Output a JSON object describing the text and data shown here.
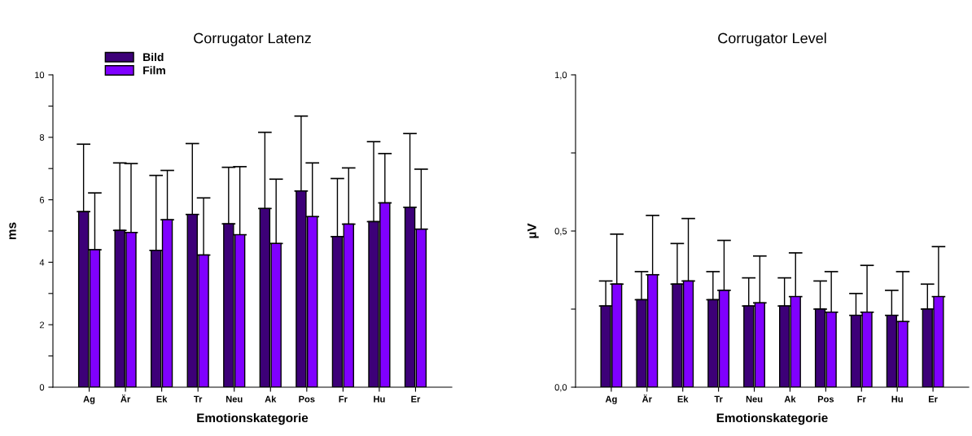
{
  "chart_data": [
    {
      "type": "bar",
      "title": "Corrugator Latenz",
      "xlabel": "Emotionskategorie",
      "ylabel": "ms",
      "categories": [
        "Ag",
        "Är",
        "Ek",
        "Tr",
        "Neu",
        "Ak",
        "Pos",
        "Fr",
        "Hu",
        "Er"
      ],
      "series": [
        {
          "name": "Bild",
          "color": "#3d0078",
          "values": [
            5.62,
            5.02,
            4.38,
            5.53,
            5.23,
            5.72,
            6.28,
            4.82,
            5.3,
            5.76
          ],
          "errors": [
            [
              5.62,
              7.78
            ],
            [
              5.02,
              7.18
            ],
            [
              4.38,
              6.78
            ],
            [
              5.53,
              7.8
            ],
            [
              5.23,
              7.04
            ],
            [
              5.72,
              8.16
            ],
            [
              6.28,
              8.68
            ],
            [
              4.82,
              6.68
            ],
            [
              5.3,
              7.86
            ],
            [
              5.76,
              8.12
            ]
          ]
        },
        {
          "name": "Film",
          "color": "#8000ff",
          "values": [
            4.4,
            4.95,
            5.36,
            4.23,
            4.88,
            4.6,
            5.46,
            5.22,
            5.9,
            5.06
          ],
          "errors": [
            [
              4.4,
              6.22
            ],
            [
              4.95,
              7.16
            ],
            [
              5.36,
              6.94
            ],
            [
              4.23,
              6.06
            ],
            [
              4.88,
              7.06
            ],
            [
              4.6,
              6.66
            ],
            [
              5.46,
              7.18
            ],
            [
              5.22,
              7.02
            ],
            [
              5.9,
              7.48
            ],
            [
              5.06,
              6.98
            ]
          ]
        }
      ],
      "ylim": [
        0,
        10
      ],
      "yticks": [
        0,
        {
          "value": 1,
          "label": null
        },
        2,
        {
          "value": 3,
          "label": null
        },
        4,
        {
          "value": 5,
          "label": null
        },
        6,
        {
          "value": 7,
          "label": null
        },
        8,
        {
          "value": 9,
          "label": null
        },
        10
      ],
      "grid": false,
      "legend": "top left"
    },
    {
      "type": "bar",
      "title": "Corrugator Level",
      "xlabel": "Emotionskategorie",
      "ylabel": "µV",
      "categories": [
        "Ag",
        "Är",
        "Ek",
        "Tr",
        "Neu",
        "Ak",
        "Pos",
        "Fr",
        "Hu",
        "Er"
      ],
      "series": [
        {
          "color": "#3d0078",
          "values": [
            0.26,
            0.28,
            0.33,
            0.28,
            0.26,
            0.26,
            0.25,
            0.23,
            0.23,
            0.25
          ],
          "errors": [
            [
              0.26,
              0.34
            ],
            [
              0.28,
              0.37
            ],
            [
              0.33,
              0.46
            ],
            [
              0.28,
              0.37
            ],
            [
              0.26,
              0.35
            ],
            [
              0.26,
              0.35
            ],
            [
              0.25,
              0.34
            ],
            [
              0.23,
              0.3
            ],
            [
              0.23,
              0.31
            ],
            [
              0.25,
              0.33
            ]
          ]
        },
        {
          "color": "#8000ff",
          "values": [
            0.33,
            0.36,
            0.34,
            0.31,
            0.27,
            0.29,
            0.24,
            0.24,
            0.21,
            0.29
          ],
          "errors": [
            [
              0.33,
              0.49
            ],
            [
              0.36,
              0.55
            ],
            [
              0.34,
              0.54
            ],
            [
              0.31,
              0.47
            ],
            [
              0.27,
              0.42
            ],
            [
              0.29,
              0.43
            ],
            [
              0.24,
              0.37
            ],
            [
              0.24,
              0.39
            ],
            [
              0.21,
              0.37
            ],
            [
              0.29,
              0.45
            ]
          ]
        }
      ],
      "ylim": [
        0,
        1
      ],
      "yticks": [
        {
          "value": 0,
          "label": "0,0"
        },
        {
          "value": 0.25,
          "label": null
        },
        {
          "value": 0.5,
          "label": "0,5"
        },
        {
          "value": 0.75,
          "label": null
        },
        {
          "value": 1,
          "label": "1,0"
        }
      ],
      "grid": false,
      "legend": false
    }
  ]
}
